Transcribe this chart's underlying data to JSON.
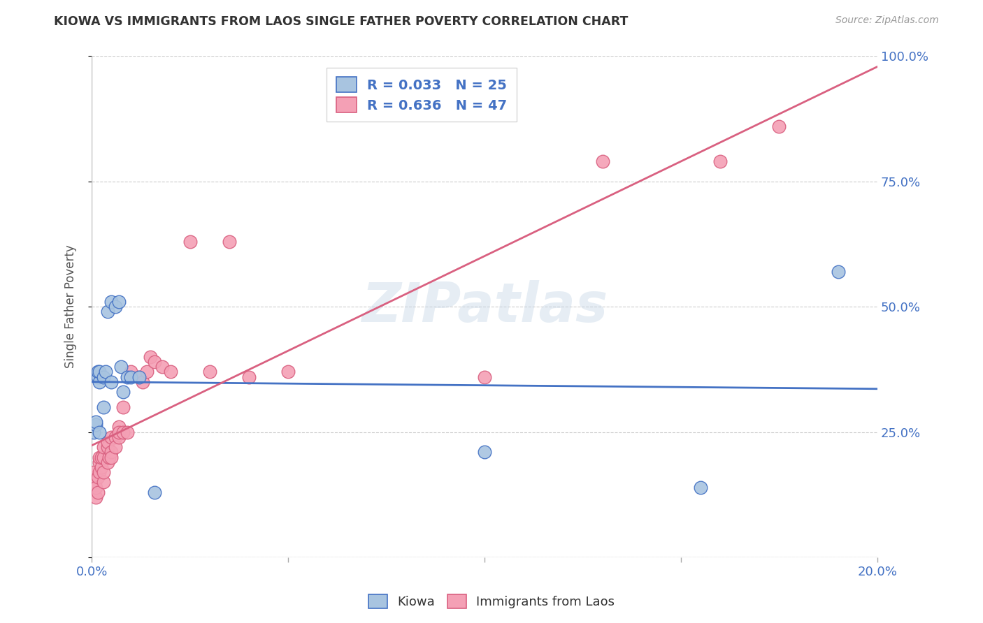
{
  "title": "KIOWA VS IMMIGRANTS FROM LAOS SINGLE FATHER POVERTY CORRELATION CHART",
  "source": "Source: ZipAtlas.com",
  "ylabel": "Single Father Poverty",
  "yticks": [
    0.0,
    0.25,
    0.5,
    0.75,
    1.0
  ],
  "ytick_labels": [
    "",
    "25.0%",
    "50.0%",
    "75.0%",
    "100.0%"
  ],
  "xticks": [
    0.0,
    0.05,
    0.1,
    0.15,
    0.2
  ],
  "xtick_labels": [
    "0.0%",
    "",
    "",
    "",
    "20.0%"
  ],
  "legend_labels": [
    "Kiowa",
    "Immigrants from Laos"
  ],
  "kiowa_R": "0.033",
  "kiowa_N": "25",
  "laos_R": "0.636",
  "laos_N": "47",
  "kiowa_color": "#a8c4e0",
  "laos_color": "#f4a0b5",
  "kiowa_line_color": "#4472c4",
  "laos_line_color": "#d96080",
  "background_color": "#ffffff",
  "watermark": "ZIPatlas",
  "kiowa_x": [
    0.0005,
    0.001,
    0.001,
    0.0015,
    0.0015,
    0.002,
    0.002,
    0.002,
    0.003,
    0.003,
    0.0035,
    0.004,
    0.005,
    0.005,
    0.006,
    0.007,
    0.0075,
    0.008,
    0.009,
    0.01,
    0.012,
    0.016,
    0.1,
    0.155,
    0.19
  ],
  "kiowa_y": [
    0.25,
    0.265,
    0.27,
    0.36,
    0.37,
    0.25,
    0.35,
    0.37,
    0.36,
    0.3,
    0.37,
    0.49,
    0.51,
    0.35,
    0.5,
    0.51,
    0.38,
    0.33,
    0.36,
    0.36,
    0.36,
    0.13,
    0.21,
    0.14,
    0.57
  ],
  "laos_x": [
    0.0005,
    0.0008,
    0.001,
    0.001,
    0.0015,
    0.0015,
    0.002,
    0.002,
    0.002,
    0.0025,
    0.0025,
    0.003,
    0.003,
    0.003,
    0.003,
    0.004,
    0.004,
    0.004,
    0.0045,
    0.005,
    0.005,
    0.005,
    0.006,
    0.006,
    0.007,
    0.007,
    0.007,
    0.008,
    0.008,
    0.009,
    0.01,
    0.012,
    0.013,
    0.014,
    0.015,
    0.016,
    0.018,
    0.02,
    0.025,
    0.03,
    0.035,
    0.04,
    0.05,
    0.1,
    0.13,
    0.16,
    0.175
  ],
  "laos_y": [
    0.17,
    0.15,
    0.12,
    0.14,
    0.13,
    0.16,
    0.17,
    0.19,
    0.2,
    0.18,
    0.2,
    0.15,
    0.17,
    0.2,
    0.22,
    0.19,
    0.22,
    0.23,
    0.2,
    0.21,
    0.24,
    0.2,
    0.24,
    0.22,
    0.24,
    0.26,
    0.25,
    0.25,
    0.3,
    0.25,
    0.37,
    0.36,
    0.35,
    0.37,
    0.4,
    0.39,
    0.38,
    0.37,
    0.63,
    0.37,
    0.63,
    0.36,
    0.37,
    0.36,
    0.79,
    0.79,
    0.86
  ]
}
